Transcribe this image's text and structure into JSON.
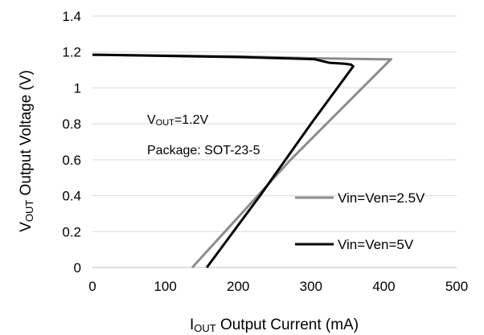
{
  "chart_data": {
    "type": "line",
    "xlabel": {
      "main": "I",
      "sub": "OUT",
      "rest": " Output Current  (mA)"
    },
    "ylabel": {
      "main": "V",
      "sub": "OUT",
      "rest": " Output Voltage  (V)"
    },
    "xlim": [
      0,
      500
    ],
    "ylim": [
      0,
      1.4
    ],
    "x_ticks": [
      "0",
      "100",
      "200",
      "300",
      "400",
      "500"
    ],
    "y_ticks": [
      "0",
      "0.2",
      "0.4",
      "0.6",
      "0.8",
      "1",
      "1.2",
      "1.4"
    ],
    "grid": "horizontal",
    "legend_position": "right",
    "annotations": {
      "vout": {
        "main": "V",
        "sub": "OUT",
        "rest": "=1.2V"
      },
      "package": "Package: SOT-23-5"
    },
    "series": [
      {
        "name": "Vin=Ven=2.5V",
        "color": "#8c8c8c",
        "points": [
          [
            0,
            1.185
          ],
          [
            200,
            1.175
          ],
          [
            300,
            1.165
          ],
          [
            395,
            1.16
          ],
          [
            410,
            1.16
          ],
          [
            405,
            1.14
          ],
          [
            272,
            0.6
          ],
          [
            137,
            0
          ]
        ]
      },
      {
        "name": "Vin=Ven=5V",
        "color": "#000000",
        "points": [
          [
            0,
            1.185
          ],
          [
            200,
            1.172
          ],
          [
            305,
            1.16
          ],
          [
            315,
            1.15
          ],
          [
            325,
            1.14
          ],
          [
            345,
            1.135
          ],
          [
            355,
            1.13
          ],
          [
            358,
            1.12
          ],
          [
            300,
            0.8
          ],
          [
            230,
            0.4
          ],
          [
            157,
            0
          ]
        ]
      }
    ]
  }
}
